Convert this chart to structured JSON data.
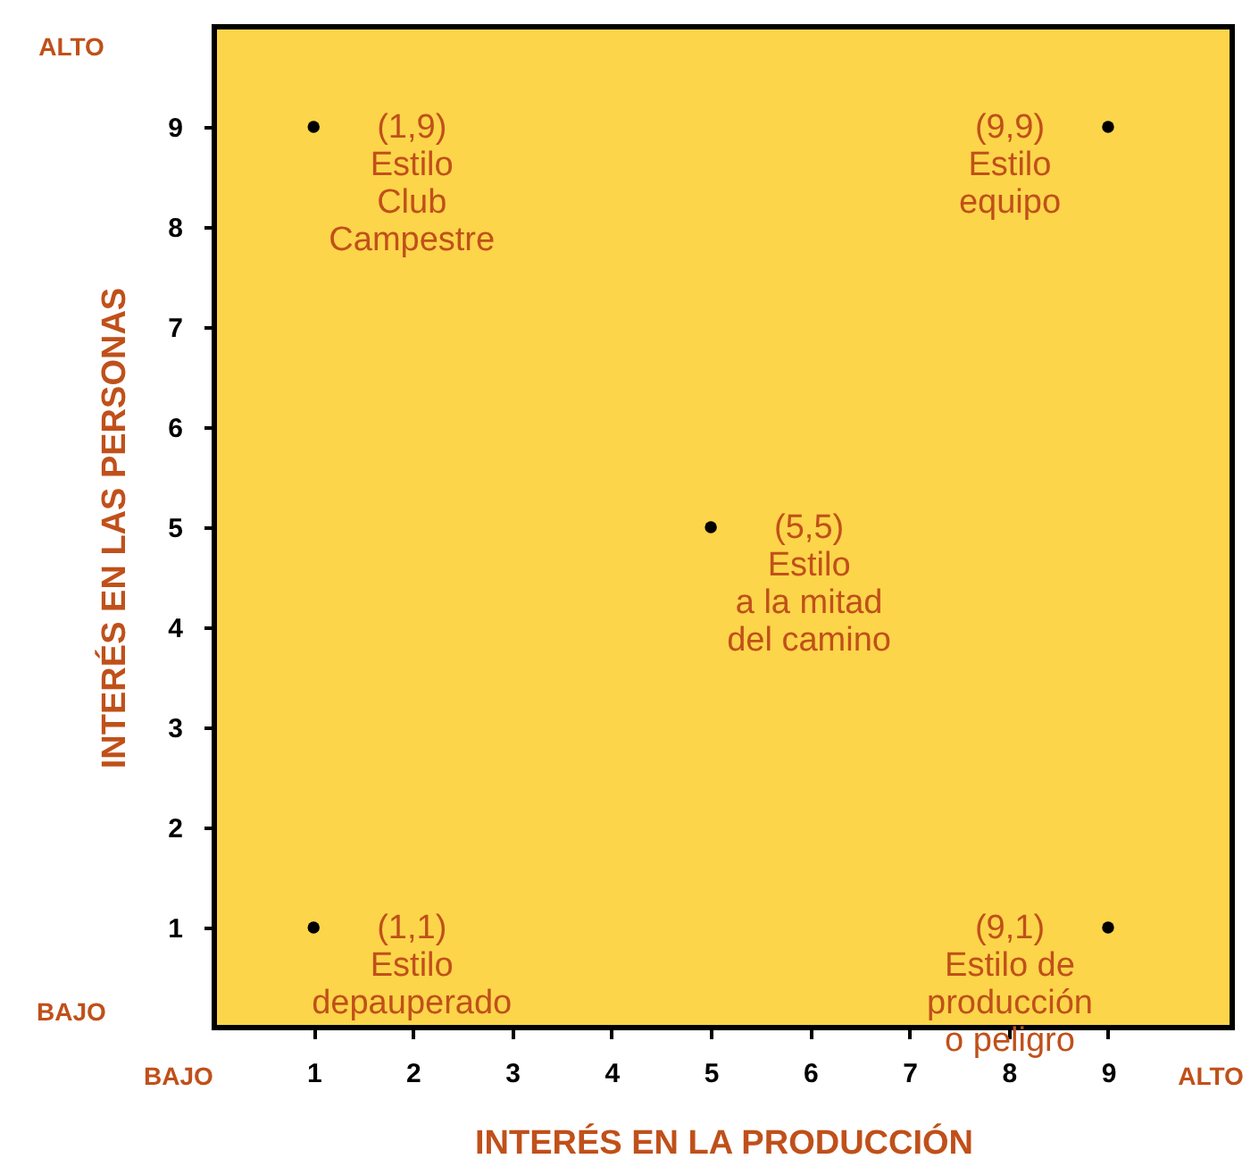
{
  "chart_data": {
    "type": "scatter",
    "xlabel": "INTERÉS EN LA PRODUCCIÓN",
    "ylabel": "INTERÉS EN LAS PERSONAS",
    "x": [
      1,
      9,
      5,
      1,
      9
    ],
    "series": [
      {
        "color": "#000000",
        "values": [
          9,
          9,
          5,
          1,
          1
        ]
      }
    ],
    "xlim": [
      0,
      10.25
    ],
    "ylim": [
      0,
      10
    ],
    "xticks": [
      1,
      2,
      3,
      4,
      5,
      6,
      7,
      8,
      9
    ],
    "yticks": [
      1,
      2,
      3,
      4,
      5,
      6,
      7,
      8,
      9
    ],
    "grid": false,
    "annotations": [
      "ALTO",
      "BAJO",
      "BAJO",
      "ALTO",
      {
        "text": "(1,9)\nEstilo\nClub\nCampestre",
        "x": 1,
        "y": 9
      },
      {
        "text": "(9,9)\nEstilo\nequipo",
        "x": 9,
        "y": 9
      },
      {
        "text": "(5,5)\nEstilo\na la mitad\ndel camino",
        "x": 5,
        "y": 5
      },
      {
        "text": "(1,1)\nEstilo\ndepauperado",
        "x": 1,
        "y": 1
      },
      {
        "text": "(9,1)\nEstilo de\nproducción\no peligro",
        "x": 9,
        "y": 1
      }
    ]
  }
}
